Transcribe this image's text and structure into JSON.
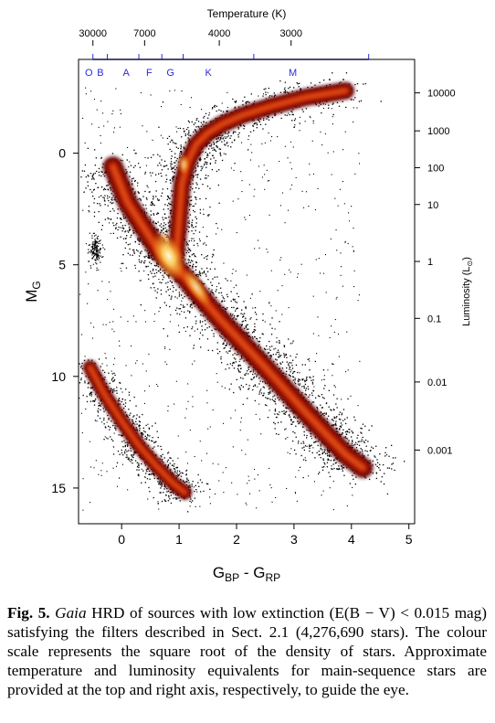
{
  "figure": {
    "top_axis": {
      "title": "Temperature (K)",
      "ticks": [
        {
          "label": "30000",
          "bp_rp": -0.5
        },
        {
          "label": "7000",
          "bp_rp": 0.4
        },
        {
          "label": "4000",
          "bp_rp": 1.7
        },
        {
          "label": "3000",
          "bp_rp": 2.95
        }
      ],
      "spectral_classes": [
        {
          "label": "O",
          "bp_rp": -0.57
        },
        {
          "label": "B",
          "bp_rp": -0.37
        },
        {
          "label": "A",
          "bp_rp": 0.08
        },
        {
          "label": "F",
          "bp_rp": 0.48
        },
        {
          "label": "G",
          "bp_rp": 0.85
        },
        {
          "label": "K",
          "bp_rp": 1.51
        },
        {
          "label": "M",
          "bp_rp": 2.98
        }
      ],
      "class_boundaries_bp_rp": [
        -0.5,
        -0.25,
        0.3,
        0.7,
        1.07,
        2.3,
        4.3
      ],
      "color": "#2b2bd8"
    },
    "right_axis": {
      "title": "Luminosity (L",
      "title_sub": "⊙",
      "title_close": ")",
      "ticks": [
        {
          "label": "10000",
          "mg": -2.7
        },
        {
          "label": "1000",
          "mg": -1.0
        },
        {
          "label": "100",
          "mg": 0.65
        },
        {
          "label": "10",
          "mg": 2.3
        },
        {
          "label": "1",
          "mg": 4.85
        },
        {
          "label": "0.1",
          "mg": 7.4
        },
        {
          "label": "0.01",
          "mg": 10.25
        },
        {
          "label": "0.001",
          "mg": 13.3
        }
      ]
    },
    "chart_data": {
      "type": "scatter",
      "description_style": "density",
      "x": {
        "label": "G",
        "label_sub1": "BP",
        "label_mid": " - G",
        "label_sub2": "RP",
        "lim": [
          -0.75,
          5.1
        ],
        "ticks": [
          0,
          1,
          2,
          3,
          4,
          5
        ]
      },
      "y": {
        "label": "M",
        "label_sub": "G",
        "lim": [
          16.6,
          -4.2
        ],
        "inverted": true,
        "ticks": [
          0,
          5,
          10,
          15
        ]
      },
      "sequences": [
        {
          "name": "main-sequence",
          "points": [
            [
              -0.15,
              0.6
            ],
            [
              0.1,
              2.2
            ],
            [
              0.4,
              3.4
            ],
            [
              0.65,
              4.4
            ],
            [
              0.95,
              5.1
            ],
            [
              1.3,
              6.2
            ],
            [
              1.7,
              7.4
            ],
            [
              2.1,
              8.5
            ],
            [
              2.5,
              9.6
            ],
            [
              2.85,
              10.6
            ],
            [
              3.2,
              11.6
            ],
            [
              3.6,
              12.7
            ],
            [
              3.9,
              13.5
            ],
            [
              4.2,
              14.1
            ]
          ]
        },
        {
          "name": "red-giant-branch",
          "points": [
            [
              0.95,
              4.6
            ],
            [
              1.0,
              3.0
            ],
            [
              1.05,
              1.4
            ],
            [
              1.15,
              0.4
            ],
            [
              1.3,
              -0.4
            ],
            [
              1.5,
              -0.9
            ],
            [
              1.75,
              -1.3
            ],
            [
              2.1,
              -1.7
            ],
            [
              2.6,
              -2.1
            ],
            [
              3.2,
              -2.5
            ],
            [
              3.9,
              -2.8
            ]
          ]
        },
        {
          "name": "white-dwarf-sequence",
          "points": [
            [
              -0.55,
              9.6
            ],
            [
              -0.3,
              10.8
            ],
            [
              0.0,
              12.0
            ],
            [
              0.3,
              13.1
            ],
            [
              0.6,
              14.0
            ],
            [
              0.9,
              14.8
            ],
            [
              1.1,
              15.2
            ]
          ]
        }
      ]
    }
  },
  "caption": {
    "label": "Fig. 5.",
    "gaia": "Gaia",
    "text": "HRD of sources with low extinction (E(B − V) < 0.015 mag) satisfying the filters described in Sect. 2.1 (4,276,690 stars). The colour scale represents the square root of the density of stars. Approximate temperature and luminosity equivalents for main-sequence stars are provided at the top and right axis, respectively, to guide the eye."
  }
}
